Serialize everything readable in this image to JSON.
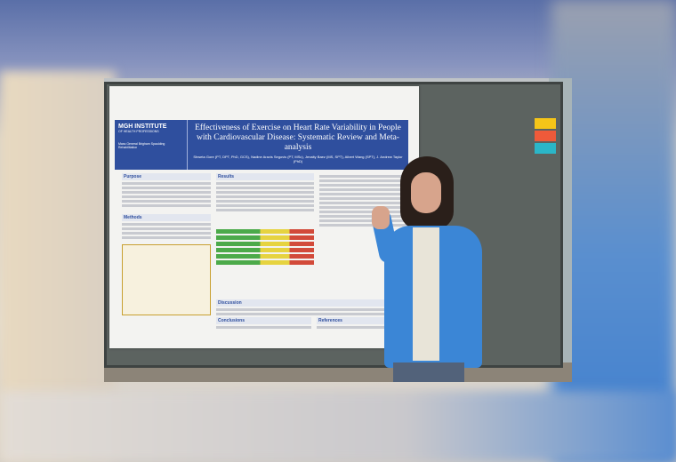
{
  "poster": {
    "institution": "MGH INSTITUTE",
    "institution_sub": "OF HEALTH PROFESSIONS",
    "partner": "Mass General Brigham Spaulding Rehabilitation",
    "title": "Effectiveness of Exercise on Heart Rate Variability in People with Cardiovascular Disease: Systematic Review and Meta-analysis",
    "authors": "Shweta Gore (PT, DPT, PhD, GCS), Nadine Aravis Segovis (PT, MSc), Jenalty Baez (MS, SPT), Albert Wang (SPT), J. Andrew Taylor (PhD)",
    "sections": [
      "Purpose",
      "Methods",
      "Results",
      "Discussion",
      "Conclusions",
      "References"
    ]
  },
  "colors": {
    "banner": "#2f4f9e",
    "jacket": "#3b86d6",
    "sticky_yellow": "#f5c518",
    "sticky_red": "#ee5a3a",
    "sticky_cyan": "#2bb6c8"
  }
}
